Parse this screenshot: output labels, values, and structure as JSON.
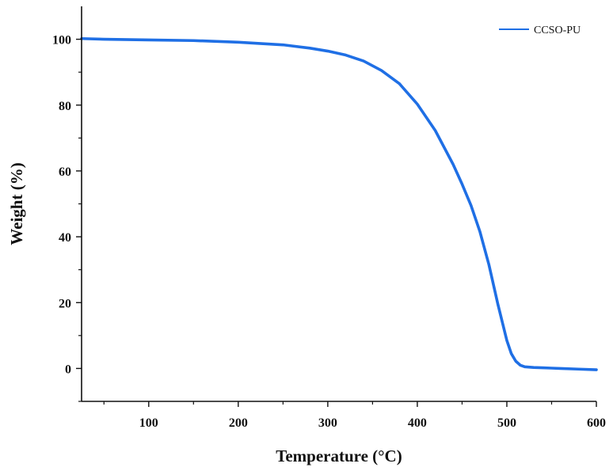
{
  "chart_data": {
    "type": "line",
    "title": "",
    "xlabel": "Temperature (°C)",
    "ylabel": "Weight  (%)",
    "xlim": [
      25,
      600
    ],
    "ylim": [
      -10,
      110
    ],
    "x_ticks": [
      100,
      200,
      300,
      400,
      500,
      600
    ],
    "y_ticks": [
      0,
      20,
      40,
      60,
      80,
      100
    ],
    "x_tick_labels": [
      "100",
      "200",
      "300",
      "400",
      "500",
      "600"
    ],
    "y_tick_labels": [
      "0",
      "20",
      "40",
      "60",
      "80",
      "100"
    ],
    "x_minor_ticks": [
      50,
      150,
      250,
      350,
      450,
      550
    ],
    "y_minor_ticks": [
      -10,
      10,
      30,
      50,
      70,
      90
    ],
    "grid": false,
    "legend_position": "top-right",
    "series": [
      {
        "name": "CCSO-PU",
        "color": "#1f6fe5",
        "x": [
          25,
          50,
          100,
          150,
          200,
          250,
          280,
          300,
          320,
          340,
          360,
          380,
          400,
          420,
          440,
          450,
          460,
          470,
          480,
          490,
          500,
          505,
          510,
          515,
          520,
          530,
          540,
          550,
          560,
          580,
          600
        ],
        "y": [
          100.2,
          100,
          99.8,
          99.6,
          99.1,
          98.3,
          97.3,
          96.4,
          95.2,
          93.4,
          90.5,
          86.5,
          80.3,
          72.3,
          62,
          56,
          49.5,
          41.5,
          31.5,
          19.5,
          8.5,
          4.5,
          2.2,
          1.0,
          0.5,
          0.3,
          0.2,
          0.1,
          0.0,
          -0.2,
          -0.4
        ]
      }
    ]
  }
}
